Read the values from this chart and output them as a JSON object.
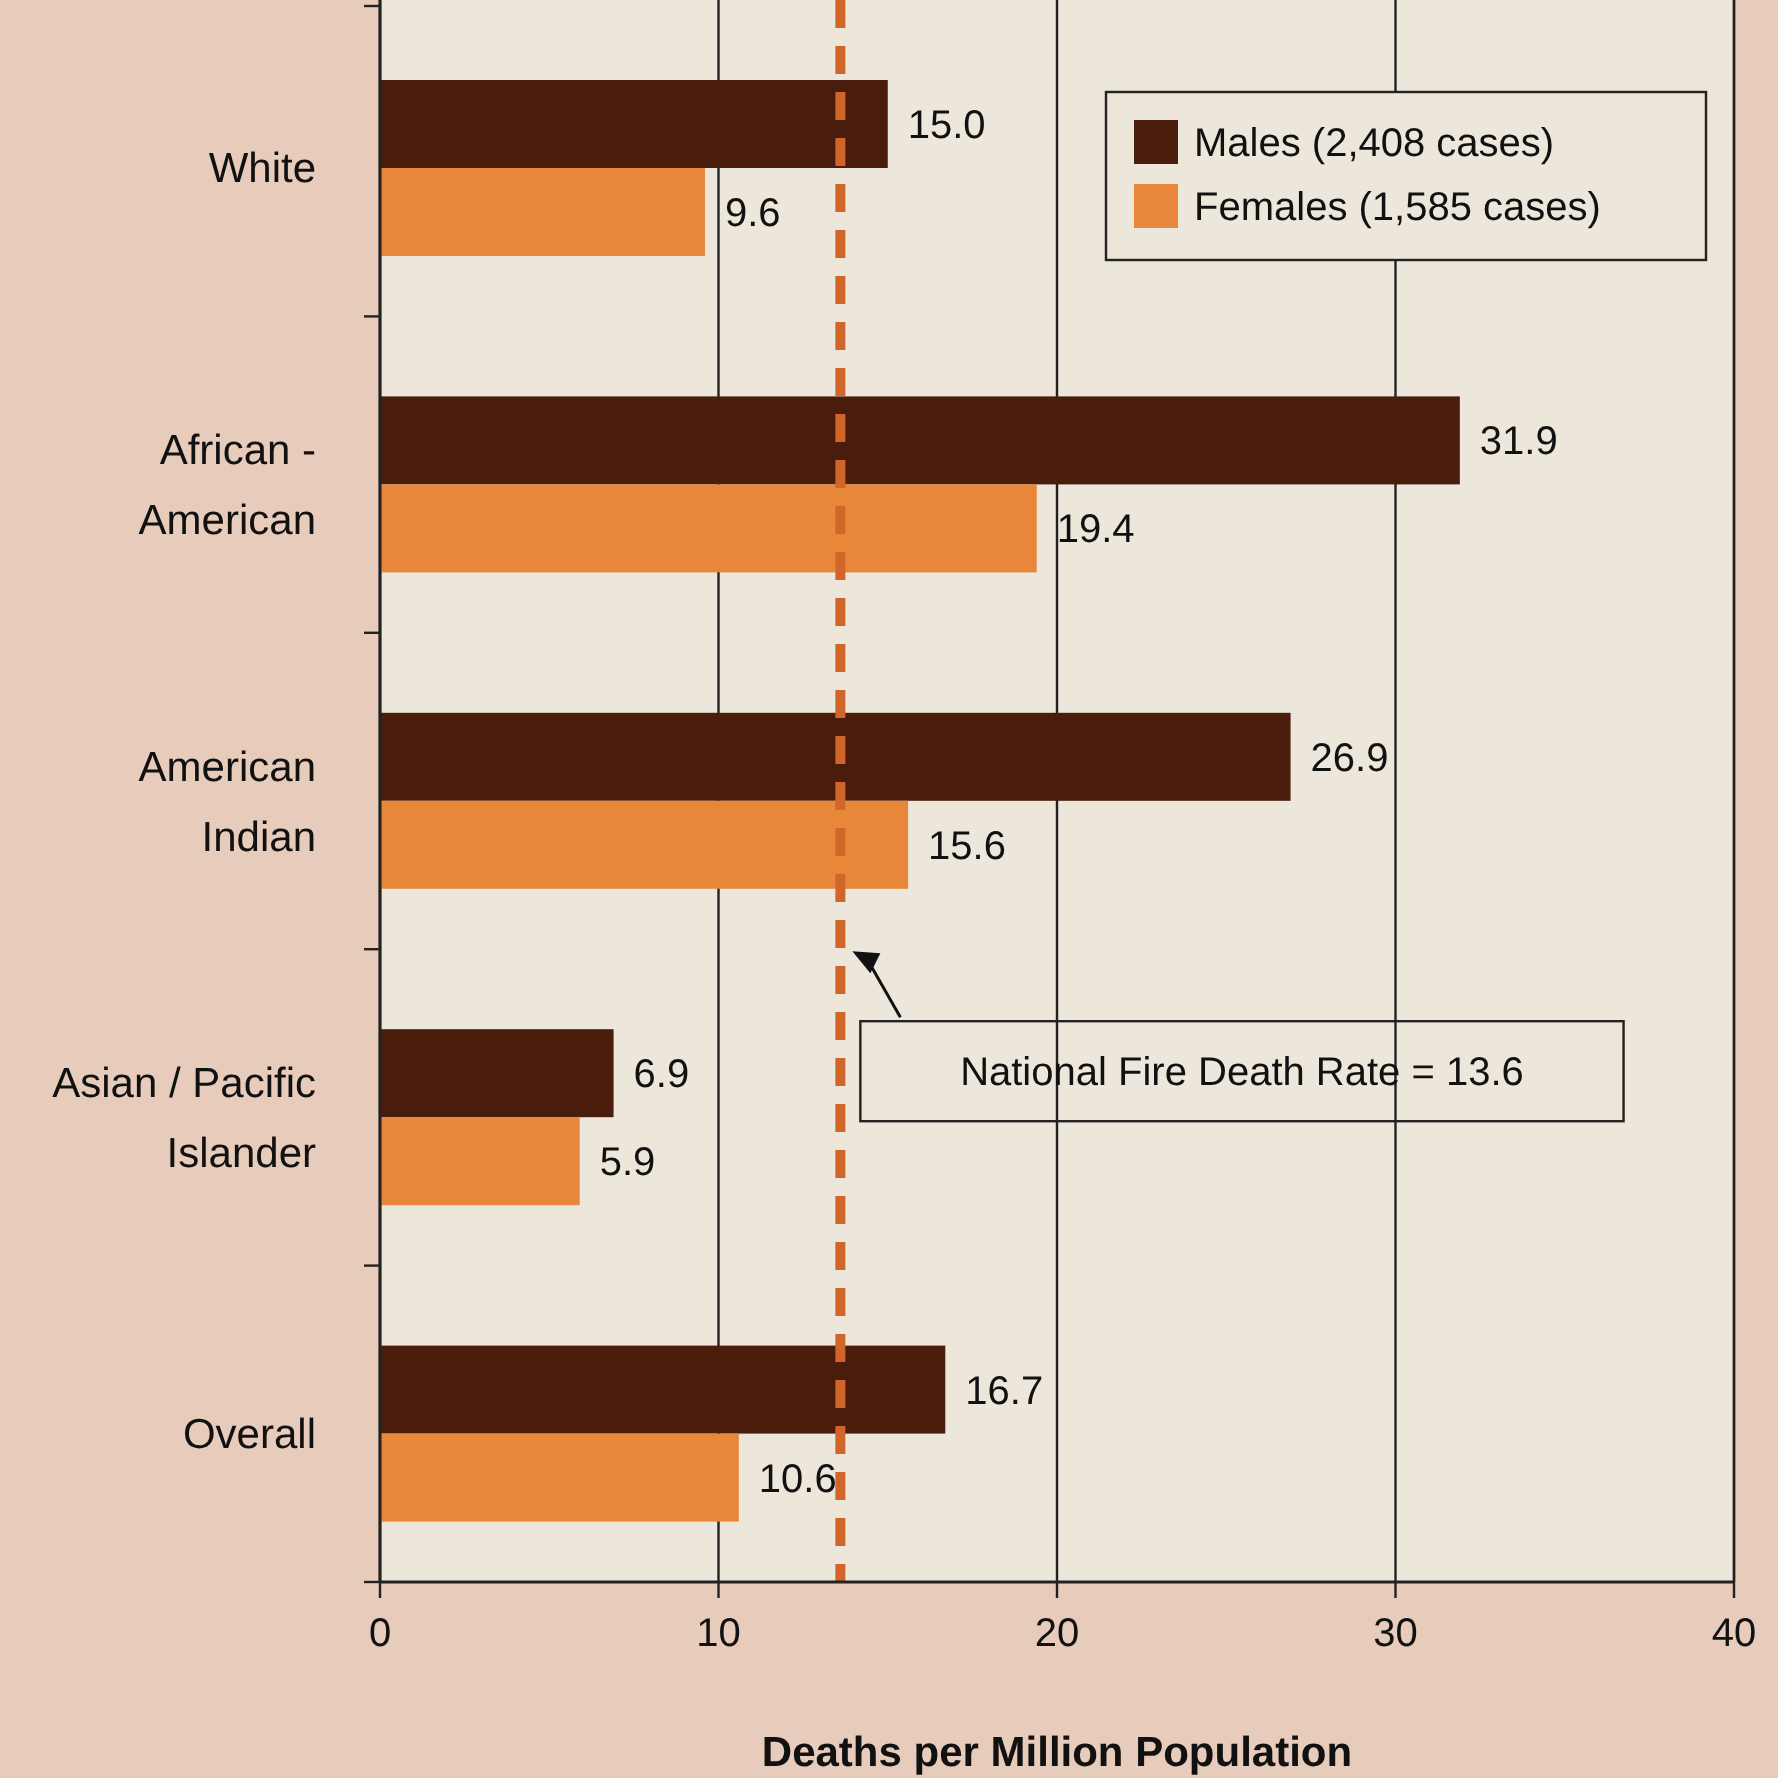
{
  "chart_data": {
    "type": "bar",
    "orientation": "horizontal",
    "xlabel": "Deaths per Million Population",
    "categories": [
      "White",
      "African - American",
      "American Indian",
      "Asian / Pacific Islander",
      "Overall"
    ],
    "series": [
      {
        "name": "Males (2,408  cases)",
        "color": "#4a1c0c",
        "values": [
          15.0,
          31.9,
          26.9,
          6.9,
          16.7
        ],
        "value_labels": [
          "15.0",
          "31.9",
          "26.9",
          "6.9",
          "16.7"
        ]
      },
      {
        "name": "Females (1,585  cases)",
        "color": "#e8873a",
        "values": [
          9.6,
          19.4,
          15.6,
          5.9,
          10.6
        ],
        "value_labels": [
          "9.6",
          "19.4",
          "15.6",
          "5.9",
          "10.6"
        ]
      }
    ],
    "xlim": [
      0,
      40
    ],
    "xticks": [
      0,
      10,
      20,
      30,
      40
    ],
    "grid": "x",
    "legend": "top right",
    "ref_lines": [
      {
        "axis": "x",
        "value": 13.6,
        "label": "National Fire Death Rate  = 13.6",
        "color": "#d0662a",
        "line_style": "dashed"
      }
    ]
  }
}
